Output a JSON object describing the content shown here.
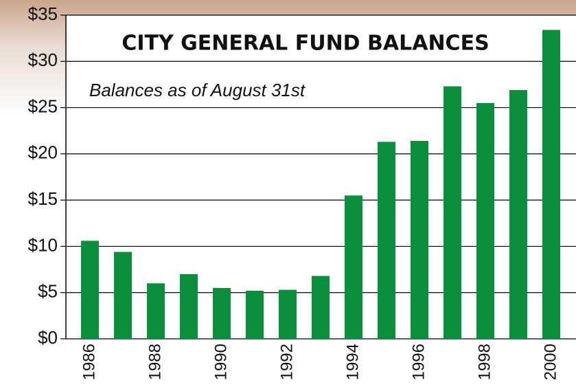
{
  "chart_data": {
    "type": "bar",
    "title": "CITY GENERAL FUND BALANCES",
    "subtitle": "Balances as of August 31st",
    "categories": [
      "1986",
      null,
      "1988",
      null,
      "1990",
      null,
      "1992",
      null,
      "1994",
      null,
      "1996",
      null,
      "1998",
      null,
      "2000"
    ],
    "values": [
      10.6,
      9.4,
      6.0,
      7.0,
      5.5,
      5.2,
      5.3,
      6.8,
      15.5,
      21.3,
      21.4,
      27.3,
      25.5,
      26.9,
      33.4
    ],
    "color": "#0a8f3c",
    "ylim": [
      0,
      35
    ],
    "yticks": [
      {
        "value": 0,
        "label": "$0"
      },
      {
        "value": 5,
        "label": "$5"
      },
      {
        "value": 10,
        "label": "$10"
      },
      {
        "value": 15,
        "label": "$15"
      },
      {
        "value": 20,
        "label": "$20"
      },
      {
        "value": 25,
        "label": "$25"
      },
      {
        "value": 30,
        "label": "$30"
      },
      {
        "value": 35,
        "label": "$35"
      }
    ],
    "grid": true
  }
}
